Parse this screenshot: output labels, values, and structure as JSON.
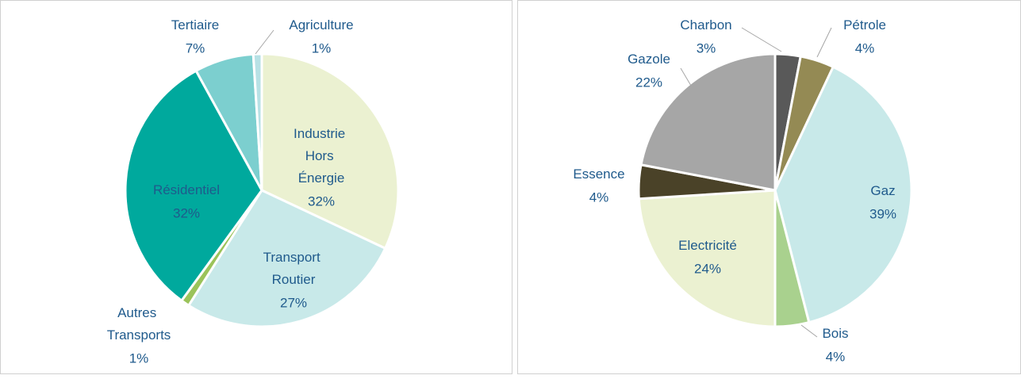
{
  "chart_data": [
    {
      "type": "pie",
      "categories": [
        "Industrie Hors Énergie",
        "Transport Routier",
        "Autres Transports",
        "Résidentiel",
        "Tertiaire",
        "Agriculture"
      ],
      "values": [
        32,
        27,
        1,
        32,
        7,
        1
      ],
      "value_labels": [
        "32%",
        "27%",
        "1%",
        "32%",
        "7%",
        "1%"
      ],
      "colors": [
        "#ebf1d1",
        "#c8e9e9",
        "#9bc35a",
        "#00a99d",
        "#7ccfcf",
        "#b7e1e5"
      ]
    },
    {
      "type": "pie",
      "categories": [
        "Charbon",
        "Pétrole",
        "Gaz",
        "Bois",
        "Electricité",
        "Essence",
        "Gazole"
      ],
      "values": [
        3,
        4,
        39,
        4,
        24,
        4,
        22
      ],
      "value_labels": [
        "3%",
        "4%",
        "39%",
        "4%",
        "24%",
        "4%",
        "22%"
      ],
      "colors": [
        "#595959",
        "#948a54",
        "#c8e9e9",
        "#a9d18e",
        "#ebf1d1",
        "#4a4228",
        "#a6a6a6"
      ]
    }
  ]
}
